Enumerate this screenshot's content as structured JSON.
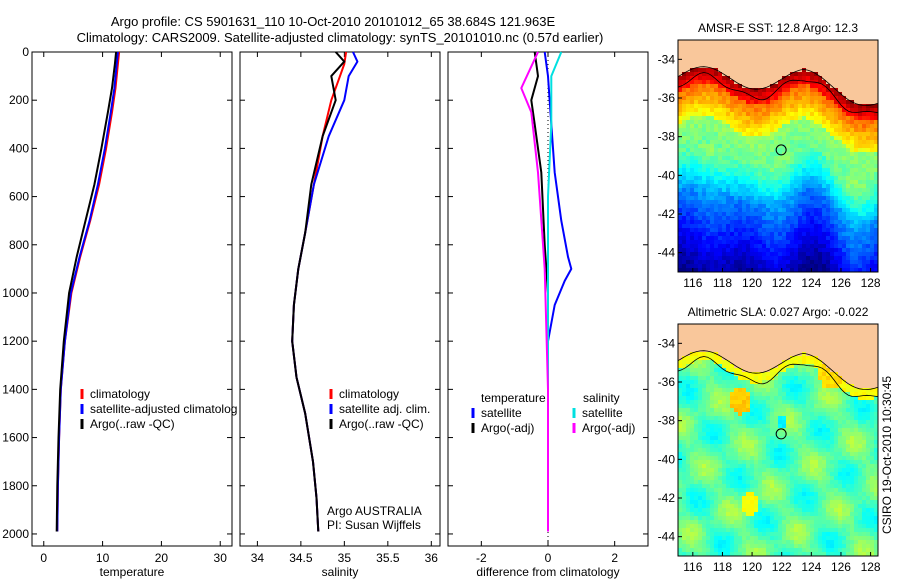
{
  "header": {
    "line1": "Argo profile: CS 5901631_110 10-Oct-2010 20101012_65 38.684S 121.963E",
    "line2": "Climatology: CARS2009. Satellite-adjusted climatology: synTS_20101010.nc (0.57d earlier)"
  },
  "footer": {
    "credit": "CSIRO 19-Oct-2010 10:30:45"
  },
  "chart_data": [
    {
      "type": "line",
      "xlabel": "temperature",
      "xlim": [
        -2,
        32
      ],
      "ylim": [
        2050,
        0
      ],
      "xticks": [
        0,
        10,
        20,
        30
      ],
      "yticks": [
        0,
        200,
        400,
        600,
        800,
        1000,
        1200,
        1400,
        1600,
        1800,
        2000
      ],
      "legend": [
        "climatology",
        "satellite-adjusted climatolog",
        "Argo(..raw -QC)"
      ],
      "series": [
        {
          "name": "climatology",
          "color": "#ff0000",
          "x": [
            12.8,
            12.6,
            12.2,
            11.6,
            10.6,
            9.4,
            7.9,
            6.2,
            4.7,
            3.6,
            2.9,
            2.6,
            2.4,
            2.3
          ],
          "y": [
            0,
            50,
            150,
            250,
            400,
            550,
            700,
            850,
            1000,
            1200,
            1400,
            1600,
            1800,
            1990
          ]
        },
        {
          "name": "satellite-adjusted climatolog",
          "color": "#0000ff",
          "x": [
            12.6,
            12.4,
            12.0,
            11.4,
            10.4,
            9.2,
            7.8,
            6.1,
            4.6,
            3.6,
            2.9,
            2.6,
            2.4,
            2.3
          ],
          "y": [
            0,
            50,
            150,
            250,
            400,
            550,
            700,
            850,
            1000,
            1200,
            1400,
            1600,
            1800,
            1990
          ]
        },
        {
          "name": "Argo(..raw -QC)",
          "color": "#000000",
          "x": [
            12.3,
            12.1,
            11.6,
            10.9,
            9.8,
            8.6,
            7.1,
            5.6,
            4.3,
            3.4,
            2.8,
            2.5,
            2.3,
            2.2
          ],
          "y": [
            0,
            50,
            150,
            250,
            400,
            550,
            700,
            850,
            1000,
            1200,
            1400,
            1600,
            1800,
            1990
          ]
        }
      ]
    },
    {
      "type": "line",
      "xlabel": "salinity",
      "xlim": [
        33.8,
        36.1
      ],
      "ylim": [
        2050,
        0
      ],
      "xticks": [
        34,
        34.5,
        35,
        35.5,
        36
      ],
      "legend": [
        "climatology",
        "satellite adj. clim.",
        "Argo(..raw -QC)"
      ],
      "annotation": [
        "Argo AUSTRALIA",
        "PI: Susan Wijffels"
      ],
      "series": [
        {
          "name": "climatology",
          "color": "#ff0000",
          "x": [
            35.02,
            35.0,
            34.95,
            34.85,
            34.75,
            34.65,
            34.55,
            34.47,
            34.42,
            34.4,
            34.45,
            34.55,
            34.64,
            34.68,
            34.7
          ],
          "y": [
            0,
            50,
            100,
            200,
            350,
            550,
            750,
            900,
            1050,
            1200,
            1350,
            1500,
            1700,
            1850,
            1990
          ]
        },
        {
          "name": "satellite adj. clim.",
          "color": "#0000ff",
          "x": [
            35.1,
            35.15,
            35.05,
            35.0,
            34.82,
            34.65,
            34.55,
            34.47,
            34.42,
            34.4,
            34.45,
            34.55,
            34.64,
            34.68,
            34.7
          ],
          "y": [
            0,
            40,
            100,
            200,
            350,
            550,
            750,
            900,
            1050,
            1200,
            1350,
            1500,
            1700,
            1850,
            1990
          ]
        },
        {
          "name": "Argo(..raw -QC)",
          "color": "#000000",
          "x": [
            34.9,
            35.0,
            34.85,
            34.9,
            34.75,
            34.62,
            34.55,
            34.47,
            34.42,
            34.4,
            34.45,
            34.55,
            34.64,
            34.68,
            34.7
          ],
          "y": [
            0,
            40,
            100,
            200,
            350,
            550,
            750,
            900,
            1050,
            1200,
            1350,
            1500,
            1700,
            1850,
            1990
          ]
        }
      ]
    },
    {
      "type": "line",
      "xlabel": "difference from climatology",
      "xlim": [
        -3,
        3
      ],
      "ylim": [
        2050,
        0
      ],
      "xticks": [
        -2,
        0,
        2
      ],
      "legend_left": {
        "title": "temperature",
        "items": [
          "satellite",
          "Argo(-adj)"
        ]
      },
      "legend_right": {
        "title": "salinity",
        "items": [
          "satellite",
          "Argo(-adj)"
        ]
      },
      "series": [
        {
          "name": "temperature satellite",
          "color": "#0000ff",
          "x": [
            -0.1,
            0.0,
            0.1,
            0.2,
            0.4,
            0.6,
            0.7,
            0.5,
            0.2,
            0.0,
            0.0,
            0.0,
            0.0
          ],
          "y": [
            0,
            100,
            300,
            500,
            700,
            850,
            900,
            950,
            1050,
            1200,
            1500,
            1800,
            1990
          ]
        },
        {
          "name": "temperature Argo(-adj)",
          "color": "#000000",
          "x": [
            -0.4,
            -0.3,
            -0.5,
            -0.4,
            -0.2,
            -0.1,
            0.0,
            0.0,
            0.0,
            0.0
          ],
          "y": [
            0,
            100,
            200,
            300,
            500,
            800,
            1000,
            1300,
            1600,
            1990
          ]
        },
        {
          "name": "salinity satellite",
          "color": "#00e0e0",
          "x": [
            0.4,
            0.1,
            0.1,
            0.0,
            0.0,
            0.0,
            0.0,
            0.0
          ],
          "y": [
            0,
            100,
            300,
            600,
            1000,
            1400,
            1800,
            1990
          ]
        },
        {
          "name": "salinity Argo(-adj)",
          "color": "#ff00ff",
          "x": [
            -0.3,
            -0.8,
            -0.5,
            -0.3,
            -0.1,
            0.0,
            0.0
          ],
          "y": [
            0,
            150,
            250,
            500,
            900,
            1400,
            1990
          ]
        }
      ]
    },
    {
      "type": "heatmap",
      "title": "AMSR-E SST: 12.8 Argo: 12.3",
      "xlim": [
        115,
        128.5
      ],
      "ylim": [
        -45,
        -33
      ],
      "xticks": [
        116,
        118,
        120,
        122,
        124,
        126,
        128
      ],
      "yticks": [
        -34,
        -36,
        -38,
        -40,
        -42,
        -44
      ],
      "marker": {
        "lon": 121.963,
        "lat": -38.684
      }
    },
    {
      "type": "heatmap",
      "title": "Altimetric SLA: 0.027 Argo: -0.022",
      "xlim": [
        115,
        128.5
      ],
      "ylim": [
        -45,
        -33
      ],
      "xticks": [
        116,
        118,
        120,
        122,
        124,
        126,
        128
      ],
      "yticks": [
        -34,
        -36,
        -38,
        -40,
        -42,
        -44
      ],
      "marker": {
        "lon": 121.963,
        "lat": -38.684
      }
    }
  ]
}
